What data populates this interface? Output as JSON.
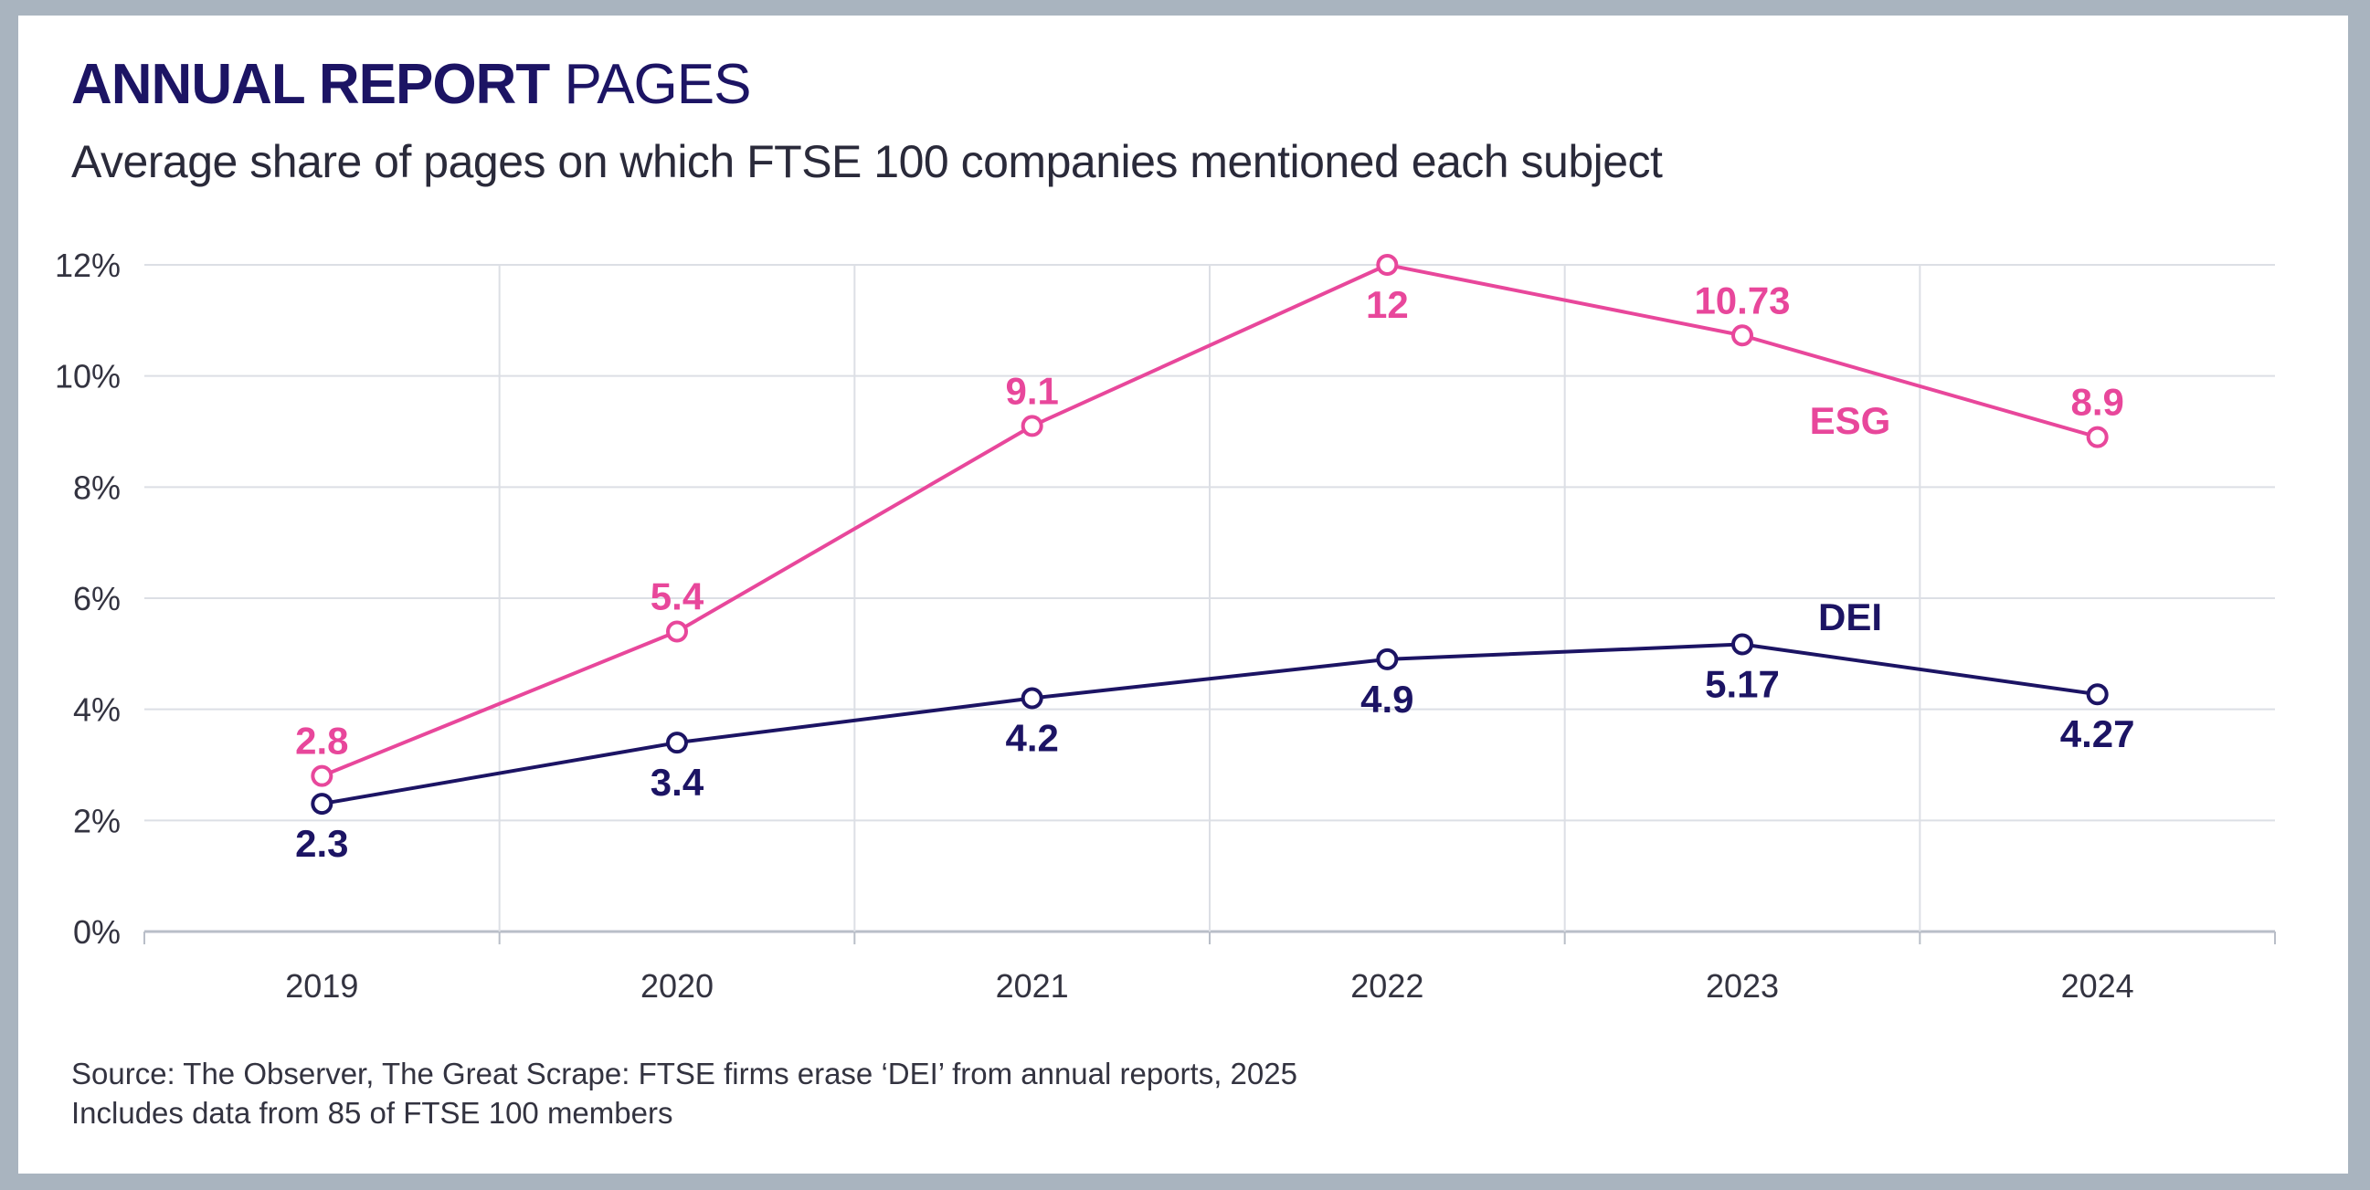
{
  "header": {
    "title_bold": "ANNUAL REPORT",
    "title_light": "PAGES",
    "subtitle": "Average share of pages on which FTSE 100 companies mentioned each subject"
  },
  "footer": {
    "source": "Source: The Observer, The Great Scrape: FTSE firms erase ‘DEI’ from annual reports, 2025",
    "note": "Includes data from 85 of FTSE 100 members"
  },
  "chart_data": {
    "type": "line",
    "title": "ANNUAL REPORT PAGES",
    "subtitle": "Average share of pages on which FTSE 100 companies mentioned each subject",
    "xlabel": "",
    "ylabel": "",
    "x": [
      "2019",
      "2020",
      "2021",
      "2022",
      "2023",
      "2024"
    ],
    "ylim": [
      0,
      12
    ],
    "y_ticks": [
      0,
      2,
      4,
      6,
      8,
      10,
      12
    ],
    "y_tick_labels": [
      "0%",
      "2%",
      "4%",
      "6%",
      "8%",
      "10%",
      "12%"
    ],
    "grid": true,
    "legend": "inline labels",
    "series": [
      {
        "name": "ESG",
        "color": "#e8479b",
        "values": [
          2.8,
          5.4,
          9.1,
          12,
          10.73,
          8.9
        ],
        "labels": [
          "2.8",
          "5.4",
          "9.1",
          "12",
          "10.73",
          "8.9"
        ]
      },
      {
        "name": "DEI",
        "color": "#1c1464",
        "values": [
          2.3,
          3.4,
          4.2,
          4.9,
          5.17,
          4.27
        ],
        "labels": [
          "2.3",
          "3.4",
          "4.2",
          "4.9",
          "5.17",
          "4.27"
        ]
      }
    ]
  }
}
